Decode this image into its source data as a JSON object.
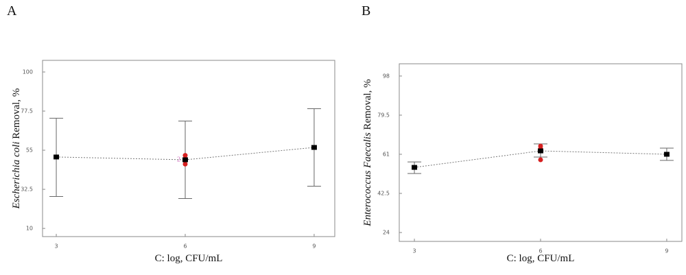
{
  "chart_data": [
    {
      "type": "line",
      "panel": "A",
      "xlabel": "C: log, CFU/mL",
      "ylabel_italic": "Escherichia coli",
      "ylabel_rest": "Removal, %",
      "x": [
        3,
        6,
        9
      ],
      "xlim": [
        2.68,
        9.48
      ],
      "xticks": [
        3,
        6,
        9
      ],
      "ylim": [
        5.3,
        106.7
      ],
      "yticks": [
        10,
        32.5,
        55,
        77.5,
        100
      ],
      "series": [
        {
          "color": "#000000",
          "values": [
            51.1,
            49.5,
            56.6
          ],
          "lower": [
            28.4,
            27.2,
            34.3
          ],
          "upper": [
            73.4,
            71.8,
            78.9
          ]
        }
      ],
      "points": {
        "color": "#d62020",
        "x": [
          6,
          6,
          6,
          6
        ],
        "y": [
          52,
          50,
          47,
          49
        ]
      },
      "point_label": "2"
    },
    {
      "type": "line",
      "panel": "B",
      "xlabel": "C: log, CFU/mL",
      "ylabel_italic": "Enterococcus Faecalis",
      "ylabel_rest": "Removal, %",
      "x": [
        3,
        6,
        9
      ],
      "xlim": [
        2.64,
        9.36
      ],
      "xticks": [
        3,
        6,
        9
      ],
      "ylim": [
        19.8,
        103.8
      ],
      "yticks": [
        24,
        42.5,
        61,
        79.5,
        98
      ],
      "series": [
        {
          "color": "#000000",
          "values": [
            54.8,
            62.6,
            61
          ],
          "lower": [
            51.9,
            59.7,
            58.1
          ],
          "upper": [
            57.4,
            65.9,
            63.9
          ]
        }
      ],
      "points": {
        "color": "#d62020",
        "x": [
          6,
          6,
          6,
          6
        ],
        "y": [
          64.9,
          63.6,
          62.6,
          58.4
        ]
      }
    }
  ]
}
